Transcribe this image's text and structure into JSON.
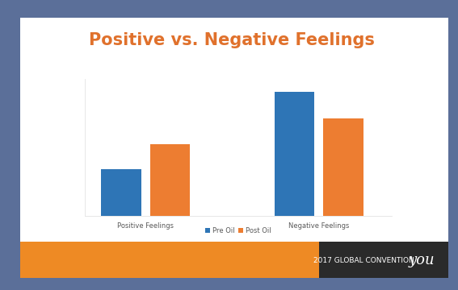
{
  "chart_data": {
    "type": "bar",
    "title": "Positive vs. Negative Feelings",
    "categories": [
      "Positive Feelings",
      "Negative Feelings"
    ],
    "series": [
      {
        "name": "Pre Oil",
        "color": "#2e75b6",
        "values": [
          58,
          154
        ]
      },
      {
        "name": "Post Oil",
        "color": "#ed7d31",
        "values": [
          89,
          121
        ]
      }
    ],
    "ylim": [
      0,
      170
    ],
    "yticks": [],
    "tick_labels": "x",
    "grid": false,
    "legend": "lower center",
    "annotations": [
      "2017 GLOBAL CONVENTION",
      "you"
    ]
  }
}
